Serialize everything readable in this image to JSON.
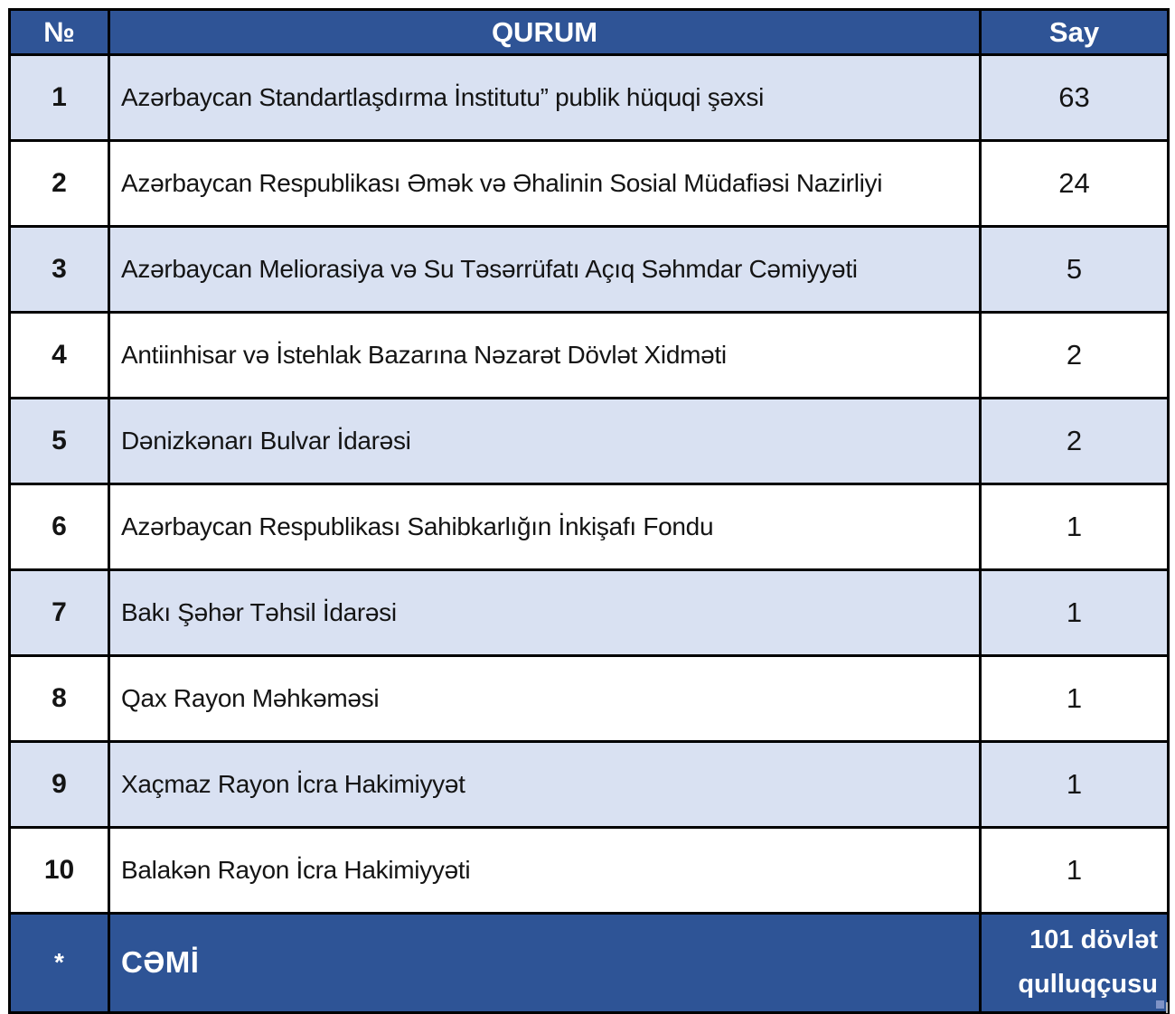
{
  "table": {
    "columns": [
      {
        "key": "no",
        "label": "№"
      },
      {
        "key": "qurum",
        "label": "QURUM"
      },
      {
        "key": "say",
        "label": "Say"
      }
    ],
    "rows": [
      {
        "no": "1",
        "qurum": "Azərbaycan Standartlaşdırma İnstitutu” publik hüquqi şəxsi",
        "say": "63"
      },
      {
        "no": "2",
        "qurum": "Azərbaycan Respublikası Əmək və Əhalinin Sosial Müdafiəsi Nazirliyi",
        "say": "24"
      },
      {
        "no": "3",
        "qurum": "Azərbaycan Meliorasiya və Su Təsərrüfatı Açıq Səhmdar Cəmiyyəti",
        "say": "5"
      },
      {
        "no": "4",
        "qurum": "Antiinhisar və İstehlak Bazarına Nəzarət Dövlət Xidməti",
        "say": "2"
      },
      {
        "no": "5",
        "qurum": "Dənizkənarı Bulvar İdarəsi",
        "say": "2"
      },
      {
        "no": "6",
        "qurum": "Azərbaycan Respublikası Sahibkarlığın İnkişafı Fondu",
        "say": "1"
      },
      {
        "no": "7",
        "qurum": "Bakı Şəhər Təhsil İdarəsi",
        "say": "1"
      },
      {
        "no": "8",
        "qurum": "Qax Rayon Məhkəməsi",
        "say": "1"
      },
      {
        "no": "9",
        "qurum": "Xaçmaz Rayon İcra Hakimiyyət",
        "say": "1"
      },
      {
        "no": "10",
        "qurum": "Balakən Rayon İcra Hakimiyyəti",
        "say": "1"
      }
    ],
    "footer": {
      "no": "*",
      "label": "CƏMİ",
      "total": "101 dövlət qulluqçusu"
    }
  },
  "colors": {
    "header_bg": "#2F5496",
    "footer_bg": "#2E5496",
    "shaded_row_bg": "#D9E1F2",
    "plain_row_bg": "#FFFFFF",
    "border": "#000000",
    "header_text": "#FFFFFF",
    "body_text": "#141414"
  }
}
